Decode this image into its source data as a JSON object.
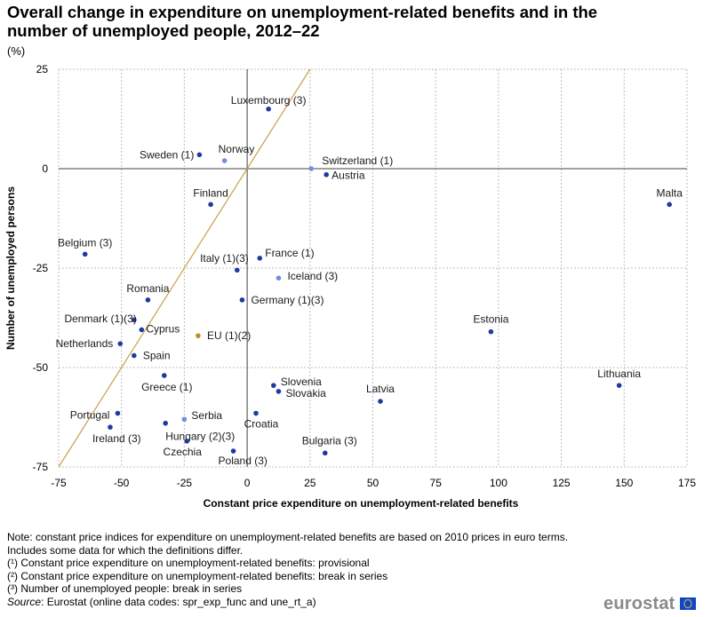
{
  "title": "Overall change in expenditure on unemployment-related benefits and in the number of unemployed people, 2012–22",
  "unit": "(%)",
  "colors": {
    "dark": "#1f3a9e",
    "light": "#6e8fe0",
    "eu": "#c08c2a",
    "diagonal": "#c8a04a",
    "grid": "#bdbdbd",
    "axis": "#404040"
  },
  "chart_data": {
    "type": "scatter",
    "xlabel": "Constant price expenditure on unemployment-related benefits",
    "ylabel": "Number of unemployed persons",
    "xlim": [
      -75,
      175
    ],
    "ylim": [
      -75,
      25
    ],
    "xticks": [
      -75,
      -50,
      -25,
      0,
      25,
      50,
      75,
      100,
      125,
      150,
      175
    ],
    "yticks": [
      -75,
      -50,
      -25,
      0,
      25
    ],
    "xtick_labels": [
      "-75",
      "-50",
      "-25",
      "0",
      "25",
      "50",
      "75",
      "100",
      "125",
      "150",
      "175"
    ],
    "ytick_labels": [
      "-75",
      "-50",
      "-25",
      "0",
      "25"
    ],
    "reference_line": "y = x",
    "points": [
      {
        "label": "Luxembourg (3)",
        "x": 8.5,
        "y": 15,
        "color": "dark",
        "anchor": "middle",
        "dx": 0,
        "dy": -10
      },
      {
        "label": "Sweden (1)",
        "x": -19,
        "y": 3.5,
        "color": "dark",
        "anchor": "end",
        "dx": -6,
        "dy": 0
      },
      {
        "label": "Norway",
        "x": -9,
        "y": 2,
        "color": "light",
        "anchor": "start",
        "dx": -7,
        "dy": -13
      },
      {
        "label": "Switzerland (1)",
        "x": 25.5,
        "y": 0,
        "color": "light",
        "anchor": "start",
        "dx": 12,
        "dy": -9
      },
      {
        "label": "Austria",
        "x": 31.5,
        "y": -1.5,
        "color": "dark",
        "anchor": "start",
        "dx": 6,
        "dy": 1
      },
      {
        "label": "Finland",
        "x": -14.5,
        "y": -9,
        "color": "dark",
        "anchor": "middle",
        "dx": 0,
        "dy": -13
      },
      {
        "label": "Malta",
        "x": 168,
        "y": -9,
        "color": "dark",
        "anchor": "middle",
        "dx": 0,
        "dy": -13
      },
      {
        "label": "Belgium (3)",
        "x": -64.5,
        "y": -21.5,
        "color": "dark",
        "anchor": "middle",
        "dx": 0,
        "dy": -13
      },
      {
        "label": "France (1)",
        "x": 5,
        "y": -22.5,
        "color": "dark",
        "anchor": "start",
        "dx": 6,
        "dy": -6
      },
      {
        "label": "Italy (1)(3)",
        "x": -4,
        "y": -25.5,
        "color": "dark",
        "anchor": "end",
        "dx": 13,
        "dy": -13
      },
      {
        "label": "Iceland (3)",
        "x": 12.5,
        "y": -27.5,
        "color": "light",
        "anchor": "start",
        "dx": 10,
        "dy": -2
      },
      {
        "label": "Romania",
        "x": -39.5,
        "y": -33,
        "color": "dark",
        "anchor": "middle",
        "dx": 0,
        "dy": -13
      },
      {
        "label": "Germany (1)(3)",
        "x": -2,
        "y": -33,
        "color": "dark",
        "anchor": "start",
        "dx": 10,
        "dy": 0
      },
      {
        "label": "Denmark (1)(3)",
        "x": -45,
        "y": -38,
        "color": "dark",
        "anchor": "end",
        "dx": 3,
        "dy": -1
      },
      {
        "label": "Cyprus",
        "x": -42,
        "y": -40.5,
        "color": "dark",
        "anchor": "start",
        "dx": 5,
        "dy": -1
      },
      {
        "label": "EU (1)(2)",
        "x": -19.5,
        "y": -42,
        "color": "eu",
        "anchor": "start",
        "dx": 10,
        "dy": 0
      },
      {
        "label": "Estonia",
        "x": 97,
        "y": -41,
        "color": "dark",
        "anchor": "middle",
        "dx": 0,
        "dy": -14
      },
      {
        "label": "Netherlands",
        "x": -50.5,
        "y": -44,
        "color": "dark",
        "anchor": "end",
        "dx": -8,
        "dy": 0
      },
      {
        "label": "Spain",
        "x": -45,
        "y": -47,
        "color": "dark",
        "anchor": "start",
        "dx": 10,
        "dy": 0
      },
      {
        "label": "Greece (1)",
        "x": -33,
        "y": -52,
        "color": "dark",
        "anchor": "middle",
        "dx": 3,
        "dy": 13
      },
      {
        "label": "Lithuania",
        "x": 148,
        "y": -54.5,
        "color": "dark",
        "anchor": "middle",
        "dx": 0,
        "dy": -13
      },
      {
        "label": "Slovenia",
        "x": 10.5,
        "y": -54.5,
        "color": "dark",
        "anchor": "start",
        "dx": 8,
        "dy": -4
      },
      {
        "label": "Slovakia",
        "x": 12.5,
        "y": -56,
        "color": "dark",
        "anchor": "start",
        "dx": 8,
        "dy": 2
      },
      {
        "label": "Latvia",
        "x": 53,
        "y": -58.5,
        "color": "dark",
        "anchor": "middle",
        "dx": 0,
        "dy": -14
      },
      {
        "label": "Portugal",
        "x": -51.5,
        "y": -61.5,
        "color": "dark",
        "anchor": "end",
        "dx": -9,
        "dy": 2
      },
      {
        "label": "Croatia",
        "x": 3.5,
        "y": -61.5,
        "color": "dark",
        "anchor": "middle",
        "dx": 6,
        "dy": 12
      },
      {
        "label": "Serbia",
        "x": -25,
        "y": -63,
        "color": "light",
        "anchor": "start",
        "dx": 8,
        "dy": -4
      },
      {
        "label": "Hungary (2)(3)",
        "x": -32.5,
        "y": -64,
        "color": "dark",
        "anchor": "start",
        "dx": 0,
        "dy": 15
      },
      {
        "label": "Ireland (3)",
        "x": -54.5,
        "y": -65,
        "color": "dark",
        "anchor": "start",
        "dx": -20,
        "dy": 13
      },
      {
        "label": "Czechia",
        "x": -24,
        "y": -68.5,
        "color": "dark",
        "anchor": "middle",
        "dx": -5,
        "dy": 12
      },
      {
        "label": "Bulgaria (3)",
        "x": 31,
        "y": -71.5,
        "color": "dark",
        "anchor": "middle",
        "dx": 5,
        "dy": -14
      },
      {
        "label": "Poland (3)",
        "x": -5.5,
        "y": -71,
        "color": "dark",
        "anchor": "start",
        "dx": -17,
        "dy": 11
      }
    ]
  },
  "notes": {
    "note": "Note: constant price indices for expenditure on unemployment-related  benefits are based on 2010 prices in euro terms. Includes  some data for which the definitions differ.",
    "fn1": "(¹) Constant price expenditure  on unemployment-related  benefits: provisional",
    "fn2": "(²) Constant price expenditure  on unemployment-related  benefits: break in series",
    "fn3": "(³) Number of unemployed people: break in series",
    "source_label": "Source",
    "source_text": ": Eurostat (online data codes: spr_exp_func and une_rt_a)"
  },
  "logo": {
    "text": "eurostat"
  }
}
